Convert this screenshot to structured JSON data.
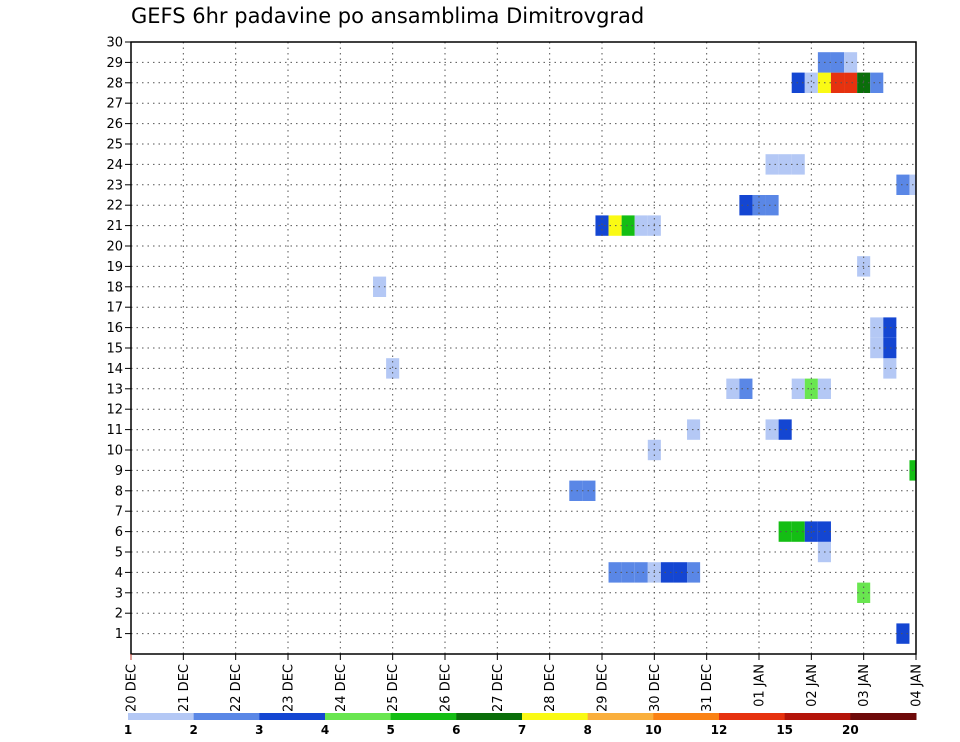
{
  "chart_data": {
    "type": "heatmap",
    "title": "GEFS 6hr padavine po ansamblima Dimitrovgrad",
    "xlabel": "",
    "ylabel": "",
    "x_tick_labels": [
      "20 DEC",
      "21 DEC",
      "22 DEC",
      "23 DEC",
      "24 DEC",
      "25 DEC",
      "26 DEC",
      "27 DEC",
      "28 DEC",
      "29 DEC",
      "30 DEC",
      "31 DEC",
      "01 JAN",
      "02 JAN",
      "03 JAN",
      "04 JAN"
    ],
    "y_tick_labels": [
      "1",
      "2",
      "3",
      "4",
      "5",
      "6",
      "7",
      "8",
      "9",
      "10",
      "11",
      "12",
      "13",
      "14",
      "15",
      "16",
      "17",
      "18",
      "19",
      "20",
      "21",
      "22",
      "23",
      "24",
      "25",
      "26",
      "27",
      "28",
      "29",
      "30"
    ],
    "x_unit": "6-hour step since 20 DEC 00Z (4 steps per day)",
    "xlim": [
      0,
      60
    ],
    "ylim": [
      0,
      30
    ],
    "grid": true,
    "legend": {
      "placement": "bottom",
      "labels": [
        "1",
        "2",
        "3",
        "4",
        "5",
        "6",
        "7",
        "8",
        "10",
        "12",
        "15",
        "20"
      ],
      "bins": [
        {
          "from": "1",
          "to": "2",
          "color": "#b4c8f5"
        },
        {
          "from": "2",
          "to": "3",
          "color": "#5a87e6"
        },
        {
          "from": "3",
          "to": "4",
          "color": "#1446d2"
        },
        {
          "from": "4",
          "to": "5",
          "color": "#69e650"
        },
        {
          "from": "5",
          "to": "6",
          "color": "#14be14"
        },
        {
          "from": "6",
          "to": "7",
          "color": "#0a6e0a"
        },
        {
          "from": "7",
          "to": "8",
          "color": "#fafa14"
        },
        {
          "from": "8",
          "to": "10",
          "color": "#faaf3c"
        },
        {
          "from": "10",
          "to": "12",
          "color": "#fa8214"
        },
        {
          "from": "12",
          "to": "15",
          "color": "#e6320f"
        },
        {
          "from": "15",
          "to": "20",
          "color": "#b4140a"
        },
        {
          "from": "20",
          "to": "",
          "color": "#6e0a0a"
        }
      ]
    },
    "cells": [
      {
        "member": 1,
        "t": 59,
        "color": "#1446d2"
      },
      {
        "member": 3,
        "t": 56,
        "color": "#69e650"
      },
      {
        "member": 4,
        "t": 37,
        "color": "#5a87e6"
      },
      {
        "member": 4,
        "t": 38,
        "color": "#5a87e6"
      },
      {
        "member": 4,
        "t": 39,
        "color": "#5a87e6"
      },
      {
        "member": 4,
        "t": 40,
        "color": "#b4c8f5"
      },
      {
        "member": 4,
        "t": 41,
        "color": "#1446d2"
      },
      {
        "member": 4,
        "t": 42,
        "color": "#1446d2"
      },
      {
        "member": 4,
        "t": 43,
        "color": "#5a87e6"
      },
      {
        "member": 5,
        "t": 53,
        "color": "#b4c8f5"
      },
      {
        "member": 6,
        "t": 50,
        "color": "#14be14"
      },
      {
        "member": 6,
        "t": 51,
        "color": "#14be14"
      },
      {
        "member": 6,
        "t": 52,
        "color": "#1446d2"
      },
      {
        "member": 6,
        "t": 53,
        "color": "#1446d2"
      },
      {
        "member": 8,
        "t": 34,
        "color": "#5a87e6"
      },
      {
        "member": 8,
        "t": 35,
        "color": "#5a87e6"
      },
      {
        "member": 9,
        "t": 60,
        "color": "#14be14"
      },
      {
        "member": 10,
        "t": 40,
        "color": "#b4c8f5"
      },
      {
        "member": 11,
        "t": 43,
        "color": "#b4c8f5"
      },
      {
        "member": 11,
        "t": 49,
        "color": "#b4c8f5"
      },
      {
        "member": 11,
        "t": 50,
        "color": "#1446d2"
      },
      {
        "member": 13,
        "t": 46,
        "color": "#b4c8f5"
      },
      {
        "member": 13,
        "t": 47,
        "color": "#5a87e6"
      },
      {
        "member": 13,
        "t": 51,
        "color": "#b4c8f5"
      },
      {
        "member": 13,
        "t": 52,
        "color": "#69e650"
      },
      {
        "member": 13,
        "t": 53,
        "color": "#b4c8f5"
      },
      {
        "member": 14,
        "t": 20,
        "color": "#b4c8f5"
      },
      {
        "member": 14,
        "t": 58,
        "color": "#b4c8f5"
      },
      {
        "member": 15,
        "t": 57,
        "color": "#b4c8f5"
      },
      {
        "member": 15,
        "t": 58,
        "color": "#1446d2"
      },
      {
        "member": 16,
        "t": 57,
        "color": "#b4c8f5"
      },
      {
        "member": 16,
        "t": 58,
        "color": "#1446d2"
      },
      {
        "member": 18,
        "t": 19,
        "color": "#b4c8f5"
      },
      {
        "member": 19,
        "t": 56,
        "color": "#b4c8f5"
      },
      {
        "member": 21,
        "t": 36,
        "color": "#1446d2"
      },
      {
        "member": 21,
        "t": 37,
        "color": "#fafa14"
      },
      {
        "member": 21,
        "t": 38,
        "color": "#14be14"
      },
      {
        "member": 21,
        "t": 39,
        "color": "#b4c8f5"
      },
      {
        "member": 21,
        "t": 40,
        "color": "#b4c8f5"
      },
      {
        "member": 22,
        "t": 47,
        "color": "#1446d2"
      },
      {
        "member": 22,
        "t": 48,
        "color": "#5a87e6"
      },
      {
        "member": 22,
        "t": 49,
        "color": "#5a87e6"
      },
      {
        "member": 23,
        "t": 59,
        "color": "#5a87e6"
      },
      {
        "member": 23,
        "t": 60,
        "color": "#b4c8f5"
      },
      {
        "member": 24,
        "t": 49,
        "color": "#b4c8f5"
      },
      {
        "member": 24,
        "t": 50,
        "color": "#b4c8f5"
      },
      {
        "member": 24,
        "t": 51,
        "color": "#b4c8f5"
      },
      {
        "member": 28,
        "t": 51,
        "color": "#1446d2"
      },
      {
        "member": 28,
        "t": 52,
        "color": "#b4c8f5"
      },
      {
        "member": 28,
        "t": 53,
        "color": "#fafa14"
      },
      {
        "member": 28,
        "t": 54,
        "color": "#e6320f"
      },
      {
        "member": 28,
        "t": 55,
        "color": "#e6320f"
      },
      {
        "member": 28,
        "t": 56,
        "color": "#0a6e0a"
      },
      {
        "member": 28,
        "t": 57,
        "color": "#5a87e6"
      },
      {
        "member": 29,
        "t": 53,
        "color": "#5a87e6"
      },
      {
        "member": 29,
        "t": 54,
        "color": "#5a87e6"
      },
      {
        "member": 29,
        "t": 55,
        "color": "#b4c8f5"
      }
    ]
  }
}
